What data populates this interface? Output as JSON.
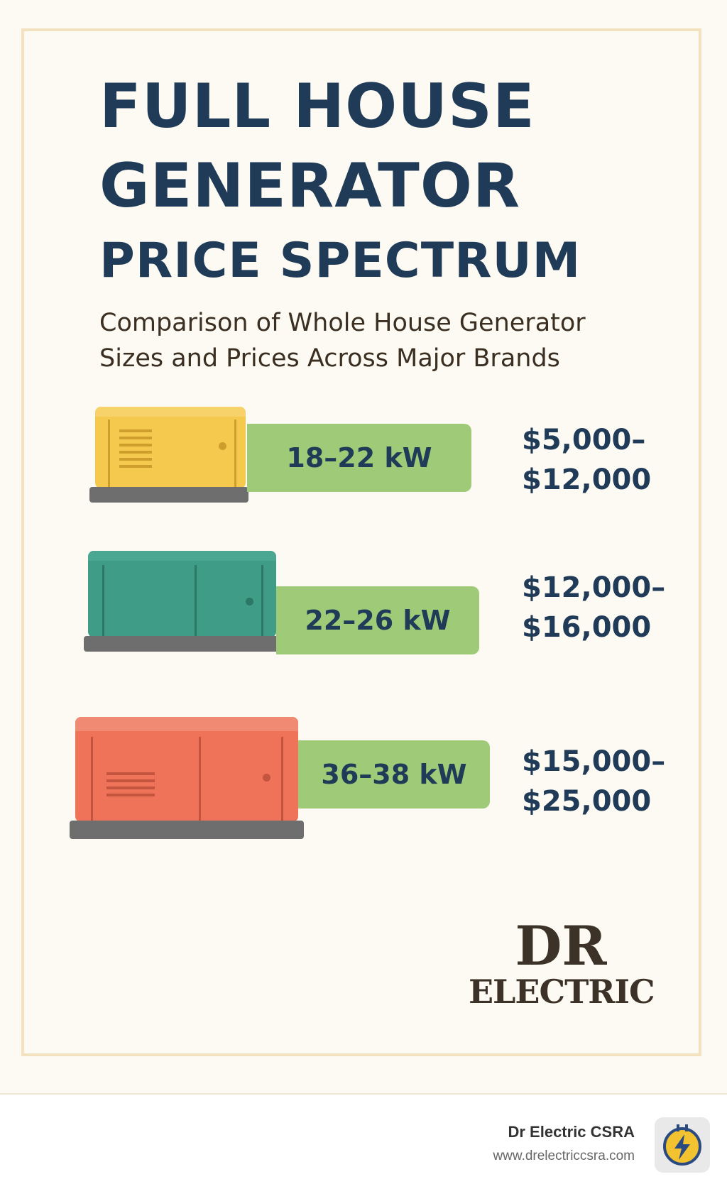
{
  "title": {
    "line1": "FULL HOUSE",
    "line2": "GENERATOR",
    "line3": "PRICE SPECTRUM"
  },
  "subtitle": {
    "line1": "Comparison of Whole House Generator",
    "line2": "Sizes and Prices Across Major Brands"
  },
  "tiers": [
    {
      "kw": "18–22 kW",
      "price_line1": "$5,000–",
      "price_line2": "$12,000",
      "color": "#f4c94e"
    },
    {
      "kw": "22–26 kW",
      "price_line1": "$12,000–",
      "price_line2": "$16,000",
      "color": "#3f9d87"
    },
    {
      "kw": "36–38 kW",
      "price_line1": "$15,000–",
      "price_line2": "$25,000",
      "color": "#ee7359"
    }
  ],
  "logo": {
    "line1": "DR",
    "line2": "ELECTRIC"
  },
  "footer": {
    "name": "Dr Electric CSRA",
    "url": "www.drelectriccsra.com",
    "icon": "plug-lightning-icon"
  }
}
